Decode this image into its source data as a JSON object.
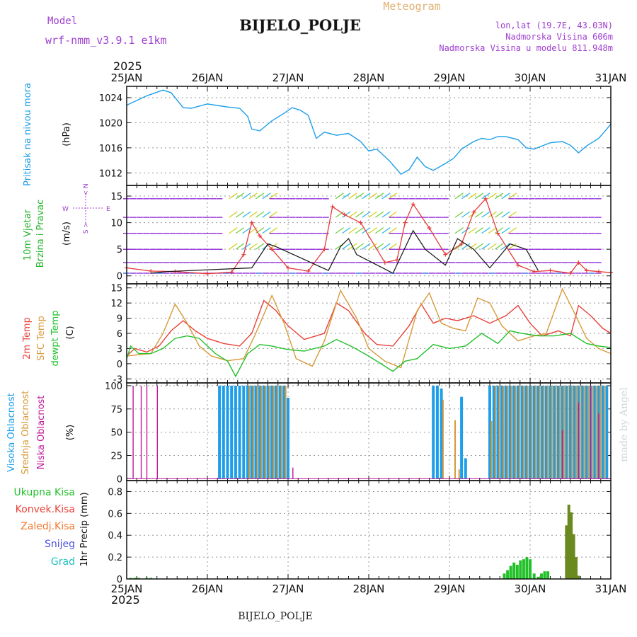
{
  "header": {
    "model_label": "Model",
    "model_name": "wrf-nmm_v3.9.1 e1km",
    "title": "BIJELO_POLJE",
    "meteogram": "Meteogram",
    "lonlat": "lon,lat (19.7E, 43.03N)",
    "altitude": "Nadmorska Visina 606m",
    "model_altitude": "Nadmorska Visina u modelu 811.948m",
    "footer": "BIJELO_POLJE",
    "credit": "made by Angel"
  },
  "time_axis": {
    "year": "2025",
    "dates": [
      "25JAN",
      "26JAN",
      "27JAN",
      "28JAN",
      "29JAN",
      "30JAN",
      "31JAN"
    ]
  },
  "colors": {
    "pressure": "#1e9ee8",
    "wind_barb": "#8b1fd6",
    "wind_speed": "#e43a3a",
    "wind_gust_line": "#111111",
    "temp2m": "#e8413a",
    "sfc": "#d89a3a",
    "dew": "#22c12a",
    "cloud_high": "#1e9ee8",
    "cloud_mid": "#d89a3a",
    "cloud_low": "#c0189a",
    "precip_total": "#22c12a",
    "precip_conv": "#e8413a",
    "precip_frz": "#f07a30",
    "snow": "#5050e0",
    "hail": "#20c0c0",
    "legend_purple": "#a040d0"
  },
  "chart_data": [
    {
      "type": "line",
      "panel": "pressure",
      "ylabel_left": "Pritisak na nivou mora",
      "ylabel_unit": "(hPa)",
      "ylim": [
        1010,
        1025.8
      ],
      "yticks": [
        1012,
        1016,
        1020,
        1024
      ],
      "grid": true,
      "series": [
        {
          "x": [
            0,
            0.25,
            0.45,
            0.55,
            0.7,
            0.8,
            1.0,
            1.15,
            1.25,
            1.4,
            1.5,
            1.55,
            1.65,
            1.8,
            1.95,
            2.05,
            2.15,
            2.25,
            2.35,
            2.45,
            2.6,
            2.75,
            2.9,
            3.0,
            3.1,
            3.25,
            3.4,
            3.5,
            3.6,
            3.7,
            3.8,
            3.95,
            4.05,
            4.15,
            4.3,
            4.4,
            4.5,
            4.6,
            4.7,
            4.85,
            4.95,
            5.05,
            5.25,
            5.4,
            5.5,
            5.6,
            5.7,
            5.85,
            5.95,
            6.0
          ],
          "values": [
            1022.8,
            1024.3,
            1025.2,
            1024.8,
            1022.4,
            1022.3,
            1023.0,
            1022.7,
            1022.5,
            1022.3,
            1021.0,
            1019.0,
            1018.7,
            1020.3,
            1021.5,
            1022.4,
            1022.0,
            1021.2,
            1017.5,
            1018.5,
            1018.0,
            1018.3,
            1017.0,
            1015.5,
            1015.8,
            1014.0,
            1011.8,
            1012.5,
            1014.5,
            1013.0,
            1012.4,
            1013.5,
            1014.3,
            1015.8,
            1017.0,
            1017.5,
            1017.3,
            1017.8,
            1017.8,
            1017.3,
            1016.0,
            1015.8,
            1016.8,
            1017.0,
            1016.4,
            1015.2,
            1016.3,
            1017.5,
            1019.0,
            1019.8
          ]
        }
      ]
    },
    {
      "type": "line",
      "panel": "wind",
      "ylabel_left": "10m Vjetar Brzina i Pravac",
      "ylabel_unit": "(m/s)",
      "compass": [
        "N",
        "S",
        "W",
        "E"
      ],
      "ylim": [
        -1.5,
        17
      ],
      "yticks": [
        0,
        5,
        10,
        15
      ],
      "barb_levels": [
        0.5,
        2.5,
        5,
        8,
        11,
        14.5
      ],
      "grid": true,
      "series": [
        {
          "name": "speed",
          "x": [
            0,
            0.3,
            0.6,
            1.0,
            1.3,
            1.45,
            1.55,
            1.65,
            1.8,
            2.0,
            2.25,
            2.45,
            2.55,
            2.7,
            2.9,
            3.2,
            3.35,
            3.45,
            3.55,
            3.75,
            3.95,
            4.15,
            4.3,
            4.45,
            4.6,
            4.85,
            5.05,
            5.25,
            5.5,
            5.6,
            5.7,
            5.85,
            6.0
          ],
          "values": [
            1.5,
            0.9,
            0.8,
            0.4,
            0.7,
            4.0,
            10.0,
            7.5,
            5.0,
            1.5,
            0.9,
            5.0,
            13.0,
            11.5,
            10.0,
            2.5,
            3.0,
            10.0,
            13.5,
            9.0,
            4.0,
            6.0,
            12.0,
            14.5,
            8.0,
            2.0,
            0.8,
            1.0,
            0.5,
            2.5,
            1.0,
            0.8,
            0.6
          ]
        },
        {
          "name": "reference",
          "x": [
            0.3,
            0.5,
            1.55,
            1.75,
            1.85,
            2.5,
            2.65,
            2.75,
            2.85,
            3.3,
            3.55,
            3.7,
            3.95,
            4.1,
            4.3,
            4.5,
            4.75,
            4.95,
            5.1
          ],
          "values": [
            0.5,
            0.8,
            1.5,
            6.0,
            5.5,
            1.0,
            5.5,
            7.0,
            4.0,
            0.5,
            8.5,
            5.0,
            2.0,
            7.0,
            5.0,
            1.5,
            6.0,
            5.0,
            1.0
          ]
        }
      ]
    },
    {
      "type": "line",
      "panel": "temperature",
      "ylabel_left": [
        "2m Temp",
        "SFC Temp",
        "dewpt Temp"
      ],
      "ylabel_unit": "(C)",
      "ylim": [
        -3.8,
        15.8
      ],
      "yticks": [
        -3,
        0,
        3,
        6,
        9,
        12,
        15
      ],
      "grid": true,
      "series": [
        {
          "name": "2m Temp",
          "x": [
            0,
            0.1,
            0.25,
            0.4,
            0.55,
            0.7,
            0.85,
            1.0,
            1.2,
            1.4,
            1.55,
            1.7,
            1.85,
            2.0,
            2.2,
            2.45,
            2.6,
            2.75,
            2.95,
            3.1,
            3.3,
            3.5,
            3.65,
            3.8,
            3.95,
            4.1,
            4.3,
            4.5,
            4.7,
            4.85,
            5.0,
            5.15,
            5.35,
            5.5,
            5.6,
            5.75,
            5.9,
            6.0
          ],
          "values": [
            1.5,
            3.0,
            2.3,
            3.5,
            6.5,
            8.5,
            6.5,
            5.0,
            4.0,
            3.5,
            6.0,
            12.5,
            10.5,
            7.5,
            4.8,
            6.0,
            12.0,
            10.5,
            6.0,
            3.8,
            3.5,
            7.5,
            11.8,
            8.0,
            9.0,
            8.5,
            9.5,
            8.0,
            9.5,
            11.5,
            8.0,
            5.5,
            6.5,
            5.5,
            11.5,
            9.5,
            7.0,
            6.0
          ]
        },
        {
          "name": "SFC Temp",
          "x": [
            0,
            0.15,
            0.3,
            0.45,
            0.6,
            0.75,
            0.9,
            1.05,
            1.25,
            1.45,
            1.6,
            1.8,
            1.95,
            2.1,
            2.3,
            2.45,
            2.65,
            2.85,
            3.0,
            3.2,
            3.4,
            3.6,
            3.75,
            3.9,
            4.05,
            4.2,
            4.35,
            4.5,
            4.65,
            4.85,
            5.05,
            5.2,
            5.4,
            5.55,
            5.7,
            5.85,
            6.0
          ],
          "values": [
            1.5,
            1.8,
            2.0,
            6.0,
            11.8,
            8.0,
            3.5,
            1.5,
            0.6,
            1.0,
            6.0,
            13.5,
            8.0,
            1.0,
            -0.5,
            4.5,
            14.5,
            9.0,
            3.0,
            0.5,
            -0.8,
            10.5,
            14.0,
            8.0,
            7.0,
            6.5,
            13.0,
            12.0,
            7.5,
            4.5,
            5.5,
            6.0,
            14.8,
            10.0,
            5.0,
            3.0,
            2.0
          ]
        },
        {
          "name": "dewpt Temp",
          "x": [
            0,
            0.05,
            0.15,
            0.3,
            0.45,
            0.6,
            0.75,
            0.9,
            1.1,
            1.25,
            1.35,
            1.5,
            1.65,
            1.8,
            2.0,
            2.2,
            2.45,
            2.6,
            2.8,
            3.0,
            3.15,
            3.3,
            3.45,
            3.6,
            3.8,
            4.0,
            4.2,
            4.4,
            4.6,
            4.75,
            4.9,
            5.1,
            5.3,
            5.5,
            5.7,
            5.85,
            6.0
          ],
          "values": [
            1.0,
            3.5,
            2.0,
            2.0,
            3.0,
            5.0,
            5.5,
            5.0,
            2.0,
            0.5,
            -2.5,
            2.0,
            3.8,
            3.5,
            2.8,
            2.5,
            3.5,
            4.8,
            3.3,
            1.5,
            0.0,
            -1.5,
            0.5,
            1.0,
            3.8,
            3.0,
            3.5,
            6.0,
            4.0,
            6.5,
            6.0,
            5.5,
            5.5,
            6.0,
            4.0,
            3.5,
            3.2
          ]
        }
      ]
    },
    {
      "type": "bar",
      "panel": "cloud",
      "ylabel_left": [
        "Visoka Oblacnost",
        "Srednja Oblacnost",
        "Niska Oblacnost"
      ],
      "ylabel_unit": "(%)",
      "ylim": [
        -2,
        103
      ],
      "yticks": [
        0,
        25,
        50,
        75,
        100
      ],
      "grid": true,
      "series": [
        {
          "name": "Visoka Oblacnost",
          "x": [
            1.15,
            1.2,
            1.25,
            1.3,
            1.35,
            1.4,
            1.45,
            1.5,
            1.55,
            1.6,
            1.65,
            1.7,
            1.75,
            1.8,
            1.85,
            1.9,
            1.95,
            2.0,
            3.8,
            3.85,
            3.9,
            4.15,
            4.2,
            4.5,
            4.55,
            4.6,
            4.65,
            4.7,
            4.75,
            4.8,
            4.85,
            4.9,
            4.95,
            5.0,
            5.05,
            5.1,
            5.15,
            5.2,
            5.25,
            5.3,
            5.35,
            5.4,
            5.45,
            5.5,
            5.55,
            5.6,
            5.65,
            5.7,
            5.75,
            5.8,
            5.85,
            5.9,
            5.95
          ],
          "values": [
            100,
            100,
            100,
            100,
            100,
            100,
            100,
            100,
            100,
            100,
            100,
            100,
            100,
            100,
            100,
            100,
            100,
            87,
            100,
            100,
            97,
            88,
            22,
            100,
            100,
            100,
            100,
            100,
            100,
            100,
            100,
            100,
            100,
            100,
            100,
            100,
            100,
            100,
            100,
            100,
            100,
            100,
            100,
            100,
            100,
            100,
            100,
            100,
            100,
            100,
            100,
            100,
            100
          ]
        },
        {
          "name": "Srednja Oblacnost",
          "x": [
            1.52,
            1.57,
            1.62,
            1.67,
            1.72,
            1.77,
            1.82,
            1.87,
            1.92,
            1.97,
            3.92,
            4.07,
            4.12,
            4.52,
            4.57,
            4.62,
            4.67,
            4.72,
            4.77,
            4.82,
            4.87,
            4.92,
            4.97,
            5.02,
            5.07,
            5.12,
            5.17,
            5.22,
            5.27,
            5.32,
            5.37,
            5.42,
            5.47,
            5.52,
            5.57,
            5.62,
            5.67,
            5.72,
            5.77,
            5.82,
            5.87,
            5.92
          ],
          "values": [
            100,
            100,
            100,
            100,
            100,
            100,
            100,
            100,
            100,
            100,
            85,
            63,
            10,
            62,
            100,
            100,
            100,
            100,
            100,
            100,
            100,
            100,
            100,
            100,
            100,
            100,
            100,
            100,
            100,
            100,
            100,
            100,
            100,
            100,
            100,
            100,
            100,
            100,
            100,
            100,
            100,
            100
          ]
        },
        {
          "name": "Niska Oblacnost",
          "x": [
            0.08,
            0.18,
            0.25,
            0.38,
            2.06,
            5.4,
            5.6,
            5.75,
            5.85
          ],
          "values": [
            100,
            100,
            100,
            100,
            12,
            52,
            82,
            100,
            70
          ]
        }
      ]
    },
    {
      "type": "bar",
      "panel": "precip",
      "legend": [
        "Ukupna Kisa",
        "Konvek.Kisa",
        "Zaledj.Kisa",
        "Snijeg",
        "Grad"
      ],
      "ylabel_unit": "1hr Precip (mm)",
      "ylim": [
        0,
        0.9
      ],
      "yticks": [
        0,
        0.2,
        0.4,
        0.6,
        0.8
      ],
      "grid": true,
      "series": [
        {
          "name": "Ukupna Kisa",
          "x": [
            0.05,
            0.1,
            0.15,
            0.25,
            0.3,
            4.68,
            4.72,
            4.76,
            4.8,
            4.84,
            4.88,
            4.92,
            4.96,
            5.0,
            5.05,
            5.1,
            5.14,
            5.18,
            5.22,
            5.45,
            5.48,
            5.51,
            5.54,
            5.57,
            5.6
          ],
          "values": [
            0.01,
            0.01,
            0.01,
            0.01,
            0.01,
            0.05,
            0.08,
            0.12,
            0.15,
            0.13,
            0.17,
            0.18,
            0.2,
            0.18,
            0.05,
            0.02,
            0.05,
            0.07,
            0.07,
            0.49,
            0.68,
            0.61,
            0.41,
            0.2,
            0.03
          ]
        }
      ]
    }
  ]
}
